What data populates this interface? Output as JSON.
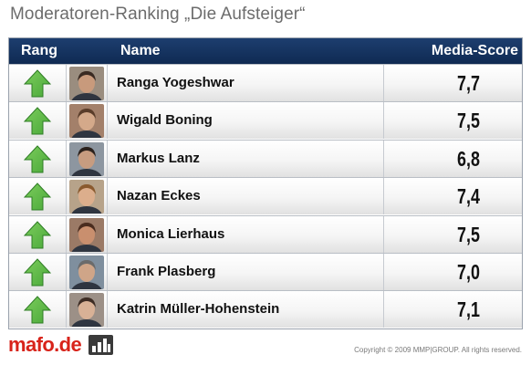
{
  "title": "Moderatoren-Ranking „Die Aufsteiger“",
  "header": {
    "rank_label": "Rang",
    "name_label": "Name",
    "score_label": "Media-Score"
  },
  "colors": {
    "header_background": "#14345f",
    "trend_up_arrow": "#4aa93a",
    "logo_red": "#d8231a"
  },
  "rows": [
    {
      "name": "Ranga Yogeshwar",
      "score": "7,7",
      "trend_icon": "green-up-arrow-icon"
    },
    {
      "name": "Wigald Boning",
      "score": "7,5",
      "trend_icon": "green-up-arrow-icon"
    },
    {
      "name": "Markus Lanz",
      "score": "6,8",
      "trend_icon": "green-up-arrow-icon"
    },
    {
      "name": "Nazan Eckes",
      "score": "7,4",
      "trend_icon": "green-up-arrow-icon"
    },
    {
      "name": "Monica Lierhaus",
      "score": "7,5",
      "trend_icon": "green-up-arrow-icon"
    },
    {
      "name": "Frank Plasberg",
      "score": "7,0",
      "trend_icon": "green-up-arrow-icon"
    },
    {
      "name": "Katrin Müller-Hohenstein",
      "score": "7,1",
      "trend_icon": "green-up-arrow-icon"
    }
  ],
  "chart_data": {
    "type": "table",
    "title": "Moderatoren-Ranking „Die Aufsteiger“",
    "columns": [
      "Rang",
      "Name",
      "Media-Score"
    ],
    "categories": [
      "Ranga Yogeshwar",
      "Wigald Boning",
      "Markus Lanz",
      "Nazan Eckes",
      "Monica Lierhaus",
      "Frank Plasberg",
      "Katrin Müller-Hohenstein"
    ],
    "values": [
      7.7,
      7.5,
      6.8,
      7.4,
      7.5,
      7.0,
      7.1
    ],
    "rank_trend": [
      "up",
      "up",
      "up",
      "up",
      "up",
      "up",
      "up"
    ]
  },
  "footer": {
    "logo_text": "mafo.de",
    "logo_icon": "bar-chart-logo-icon",
    "copyright": "Copyright © 2009 MMP|GROUP. All rights reserved."
  }
}
